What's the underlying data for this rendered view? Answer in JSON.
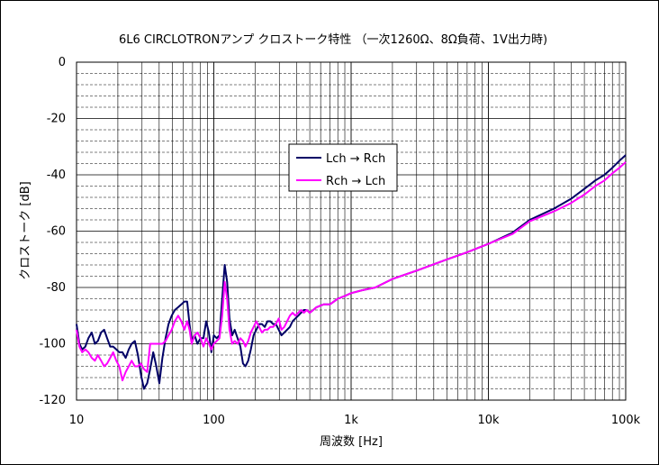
{
  "chart_data": {
    "type": "line",
    "title": "6L6 CIRCLOTRONアンプ クロストーク特性 （一次1260Ω、8Ω負荷、1V出力時)",
    "xlabel": "周波数 [Hz]",
    "ylabel": "クロストーク [dB]",
    "xscale": "log",
    "xlim": [
      10,
      100000
    ],
    "ylim": [
      -120,
      0
    ],
    "x_tick_values": [
      10,
      100,
      1000,
      10000,
      100000
    ],
    "x_tick_labels": [
      "10",
      "100",
      "1k",
      "10k",
      "100k"
    ],
    "y_tick_values": [
      0,
      -20,
      -40,
      -60,
      -80,
      -100,
      -120
    ],
    "y_tick_labels": [
      "0",
      "-20",
      "-40",
      "-60",
      "-80",
      "-100",
      "-120"
    ],
    "grid": true,
    "legend_position": "upper-center",
    "series": [
      {
        "name": "Lch → Rch",
        "color": "#000066",
        "points": [
          [
            10,
            -93
          ],
          [
            10.5,
            -100
          ],
          [
            11,
            -102
          ],
          [
            11.6,
            -101
          ],
          [
            12.2,
            -98
          ],
          [
            12.9,
            -96
          ],
          [
            13.6,
            -100
          ],
          [
            14.3,
            -99
          ],
          [
            15.1,
            -96
          ],
          [
            15.9,
            -95
          ],
          [
            16.7,
            -98
          ],
          [
            17.6,
            -101
          ],
          [
            18.5,
            -101
          ],
          [
            19.5,
            -102
          ],
          [
            20.5,
            -103
          ],
          [
            21.6,
            -103
          ],
          [
            22.8,
            -105
          ],
          [
            24,
            -102
          ],
          [
            25.2,
            -100
          ],
          [
            26.6,
            -99
          ],
          [
            28,
            -104
          ],
          [
            29.5,
            -111
          ],
          [
            31,
            -116
          ],
          [
            32.7,
            -114
          ],
          [
            34.4,
            -109
          ],
          [
            36.2,
            -103
          ],
          [
            38.1,
            -108
          ],
          [
            40.1,
            -114
          ],
          [
            42.2,
            -105
          ],
          [
            44.5,
            -98
          ],
          [
            46.8,
            -93
          ],
          [
            49.3,
            -90
          ],
          [
            52,
            -88
          ],
          [
            55,
            -87
          ],
          [
            58,
            -86
          ],
          [
            61,
            -85
          ],
          [
            64,
            -85
          ],
          [
            66.5,
            -93
          ],
          [
            69,
            -99
          ],
          [
            72.5,
            -97
          ],
          [
            76,
            -100
          ],
          [
            80,
            -98
          ],
          [
            84,
            -98
          ],
          [
            88,
            -92
          ],
          [
            92,
            -96
          ],
          [
            96,
            -103
          ],
          [
            100,
            -97
          ],
          [
            105,
            -98
          ],
          [
            110,
            -97
          ],
          [
            115,
            -84
          ],
          [
            120,
            -72
          ],
          [
            125,
            -78
          ],
          [
            130,
            -91
          ],
          [
            136,
            -97
          ],
          [
            142,
            -95
          ],
          [
            149,
            -98
          ],
          [
            156,
            -101
          ],
          [
            163,
            -107
          ],
          [
            170,
            -108
          ],
          [
            178,
            -106
          ],
          [
            186,
            -102
          ],
          [
            195,
            -97
          ],
          [
            204,
            -95
          ],
          [
            214,
            -93
          ],
          [
            224,
            -93
          ],
          [
            235,
            -94
          ],
          [
            246,
            -92
          ],
          [
            258,
            -92
          ],
          [
            270,
            -93
          ],
          [
            283,
            -93
          ],
          [
            297,
            -95
          ],
          [
            311,
            -97
          ],
          [
            326,
            -96
          ],
          [
            342,
            -95
          ],
          [
            358,
            -94
          ],
          [
            375,
            -92
          ],
          [
            393,
            -91
          ],
          [
            412,
            -90
          ],
          [
            432,
            -89
          ],
          [
            453,
            -88
          ],
          [
            475,
            -88
          ],
          [
            500,
            -89
          ],
          [
            560,
            -87
          ],
          [
            630,
            -86
          ],
          [
            700,
            -86
          ],
          [
            800,
            -84
          ],
          [
            900,
            -83
          ],
          [
            1000,
            -82
          ],
          [
            1200,
            -81
          ],
          [
            1500,
            -80
          ],
          [
            2000,
            -77
          ],
          [
            3000,
            -74
          ],
          [
            5000,
            -70
          ],
          [
            7000,
            -67.5
          ],
          [
            10000,
            -64.5
          ],
          [
            15000,
            -60.5
          ],
          [
            20000,
            -56
          ],
          [
            30000,
            -52
          ],
          [
            40000,
            -48.5
          ],
          [
            50000,
            -45
          ],
          [
            60000,
            -42
          ],
          [
            70000,
            -40
          ],
          [
            80000,
            -37.5
          ],
          [
            90000,
            -35
          ],
          [
            100000,
            -33
          ]
        ]
      },
      {
        "name": "Rch → Lch",
        "color": "#ff00ff",
        "points": [
          [
            10,
            -95
          ],
          [
            10.5,
            -101
          ],
          [
            11,
            -103
          ],
          [
            11.6,
            -102
          ],
          [
            12.2,
            -103
          ],
          [
            12.9,
            -105
          ],
          [
            13.6,
            -106
          ],
          [
            14.3,
            -104
          ],
          [
            15.1,
            -106
          ],
          [
            15.9,
            -108
          ],
          [
            16.7,
            -107
          ],
          [
            17.6,
            -105
          ],
          [
            18.5,
            -103
          ],
          [
            19.5,
            -106
          ],
          [
            20.5,
            -108
          ],
          [
            21.6,
            -113
          ],
          [
            22.8,
            -110
          ],
          [
            24,
            -108
          ],
          [
            25.2,
            -106
          ],
          [
            26.6,
            -108
          ],
          [
            28,
            -108
          ],
          [
            29.5,
            -107
          ],
          [
            31,
            -109
          ],
          [
            32.7,
            -110
          ],
          [
            34.4,
            -100
          ],
          [
            36.2,
            -100
          ],
          [
            38.1,
            -100
          ],
          [
            40.1,
            -100
          ],
          [
            42.2,
            -100
          ],
          [
            44.5,
            -99
          ],
          [
            46.8,
            -97
          ],
          [
            49.3,
            -95
          ],
          [
            52,
            -92
          ],
          [
            55,
            -90
          ],
          [
            58,
            -92
          ],
          [
            61,
            -95
          ],
          [
            64,
            -92
          ],
          [
            66.5,
            -95
          ],
          [
            69,
            -100
          ],
          [
            72.5,
            -97
          ],
          [
            76,
            -96
          ],
          [
            80,
            -98
          ],
          [
            84,
            -101
          ],
          [
            88,
            -98
          ],
          [
            92,
            -100
          ],
          [
            96,
            -102
          ],
          [
            100,
            -100
          ],
          [
            105,
            -99
          ],
          [
            110,
            -98
          ],
          [
            115,
            -90
          ],
          [
            120,
            -78
          ],
          [
            125,
            -84
          ],
          [
            130,
            -95
          ],
          [
            136,
            -100
          ],
          [
            142,
            -99
          ],
          [
            149,
            -100
          ],
          [
            156,
            -98
          ],
          [
            163,
            -99
          ],
          [
            170,
            -101
          ],
          [
            178,
            -99
          ],
          [
            186,
            -96
          ],
          [
            195,
            -94
          ],
          [
            204,
            -92
          ],
          [
            214,
            -94
          ],
          [
            224,
            -96
          ],
          [
            235,
            -95
          ],
          [
            246,
            -95
          ],
          [
            258,
            -94
          ],
          [
            270,
            -94
          ],
          [
            283,
            -93
          ],
          [
            297,
            -91
          ],
          [
            311,
            -95
          ],
          [
            326,
            -94
          ],
          [
            342,
            -92
          ],
          [
            358,
            -90
          ],
          [
            375,
            -89
          ],
          [
            393,
            -90
          ],
          [
            412,
            -89
          ],
          [
            432,
            -88
          ],
          [
            453,
            -89
          ],
          [
            475,
            -88
          ],
          [
            500,
            -89
          ],
          [
            560,
            -87
          ],
          [
            630,
            -86
          ],
          [
            700,
            -86
          ],
          [
            800,
            -84
          ],
          [
            900,
            -83
          ],
          [
            1000,
            -82
          ],
          [
            1200,
            -81
          ],
          [
            1500,
            -80
          ],
          [
            2000,
            -77
          ],
          [
            3000,
            -74
          ],
          [
            5000,
            -70
          ],
          [
            7000,
            -67.5
          ],
          [
            10000,
            -64.5
          ],
          [
            15000,
            -61
          ],
          [
            20000,
            -56.5
          ],
          [
            30000,
            -53
          ],
          [
            40000,
            -50
          ],
          [
            50000,
            -47
          ],
          [
            60000,
            -44
          ],
          [
            70000,
            -42
          ],
          [
            80000,
            -39.5
          ],
          [
            90000,
            -37.5
          ],
          [
            100000,
            -35.5
          ]
        ]
      }
    ]
  }
}
